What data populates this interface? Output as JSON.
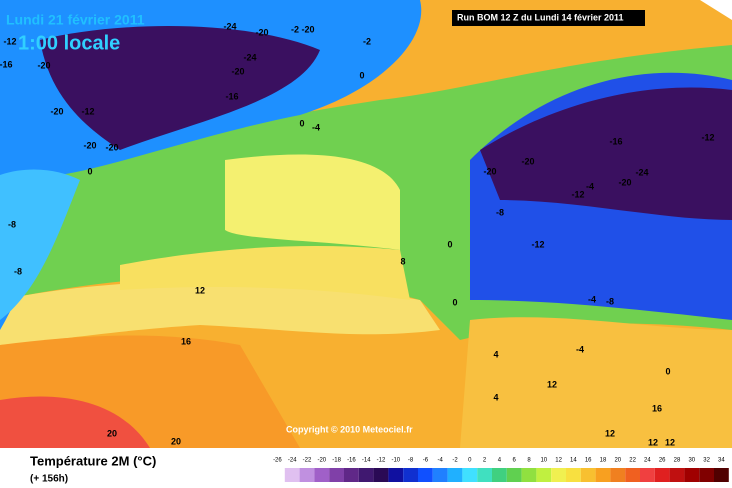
{
  "header": {
    "date": "Lundi 21 février 2011",
    "time": "1:00 locale",
    "run": "Run BOM 12 Z du Lundi 14 février 2011"
  },
  "copyright": "Copyright © 2010 Meteociel.fr",
  "contour_labels": [
    -24,
    -20,
    -2,
    -20,
    -12,
    -16,
    -20,
    -24,
    -20,
    -16,
    0,
    -2,
    -12,
    -20,
    0,
    -4,
    -20,
    -20,
    0,
    -8,
    -8,
    12,
    16,
    20,
    20,
    -16,
    -12,
    -20,
    -20,
    -24,
    -20,
    -4,
    -12,
    -8,
    -12,
    8,
    0,
    0,
    -4,
    -8,
    4,
    12,
    4,
    16,
    12,
    12,
    12,
    0,
    -4
  ],
  "legend": {
    "title": "Température 2M (°C)",
    "lead": "(+ 156h)",
    "scale_labels": [
      -26,
      -24,
      -22,
      -20,
      -18,
      -16,
      -14,
      -12,
      -10,
      -8,
      -6,
      -4,
      -2,
      0,
      2,
      4,
      6,
      8,
      10,
      12,
      14,
      16,
      18,
      20,
      22,
      24,
      26,
      28,
      30,
      32,
      34
    ],
    "colors": [
      "#ffffff",
      "#e0c0f0",
      "#c090e0",
      "#a060c8",
      "#8040a8",
      "#602888",
      "#401870",
      "#2a0a55",
      "#1010a0",
      "#1030d0",
      "#1050ff",
      "#2080ff",
      "#20b0ff",
      "#40e0ff",
      "#40e0c0",
      "#40d080",
      "#60d050",
      "#90e040",
      "#c0f040",
      "#f0f050",
      "#f8e040",
      "#f8c030",
      "#f8a020",
      "#f08020",
      "#f06020",
      "#f04040",
      "#e02020",
      "#c01010",
      "#a00000",
      "#800000",
      "#500000"
    ]
  }
}
